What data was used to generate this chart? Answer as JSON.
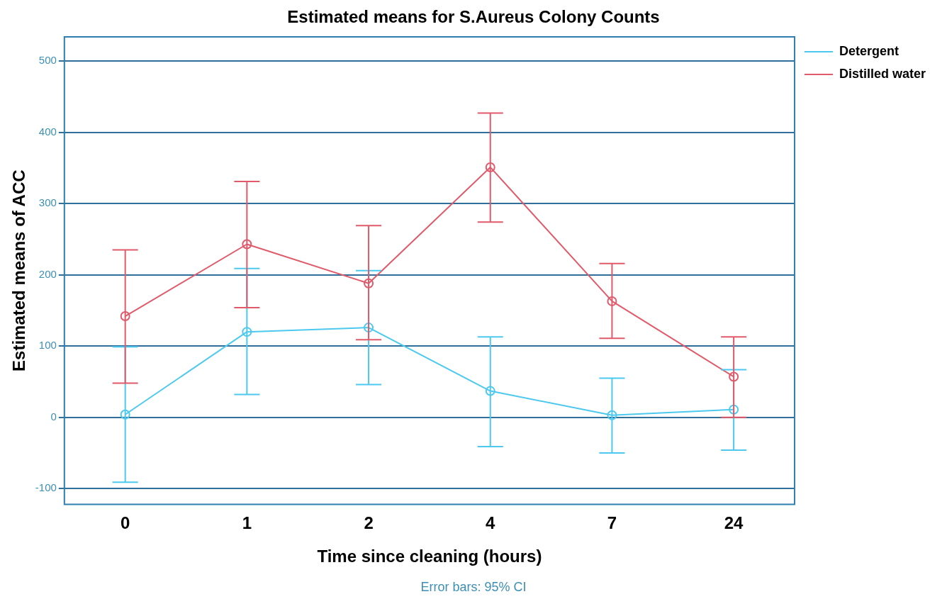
{
  "chart_data": {
    "type": "line",
    "title": "Estimated means for S.Aureus Colony Counts",
    "xlabel": "Time since cleaning (hours)",
    "ylabel": "Estimated means of ACC",
    "categories": [
      "0",
      "1",
      "2",
      "4",
      "7",
      "24"
    ],
    "series": [
      {
        "name": "Detergent",
        "color": "#4dc9ef",
        "values": [
          4,
          120,
          126,
          37,
          3,
          11
        ],
        "errors": [
          [
            -91,
            99
          ],
          [
            32,
            209
          ],
          [
            46,
            206
          ],
          [
            -41,
            113
          ],
          [
            -50,
            55
          ],
          [
            -46,
            67
          ]
        ]
      },
      {
        "name": "Distilled water",
        "color": "#e05a6a",
        "values": [
          142,
          243,
          188,
          351,
          163,
          57
        ],
        "errors": [
          [
            48,
            235
          ],
          [
            154,
            331
          ],
          [
            109,
            269
          ],
          [
            274,
            427
          ],
          [
            111,
            216
          ],
          [
            0,
            113
          ]
        ]
      }
    ],
    "ylim": [
      -122,
      534
    ],
    "yticks": [
      -100,
      0,
      100,
      200,
      300,
      400,
      500
    ],
    "grid": "y",
    "legend": "top right",
    "marker": "circle",
    "line_style": "solid",
    "annotations": [
      "Error bars: 95% CI"
    ]
  }
}
